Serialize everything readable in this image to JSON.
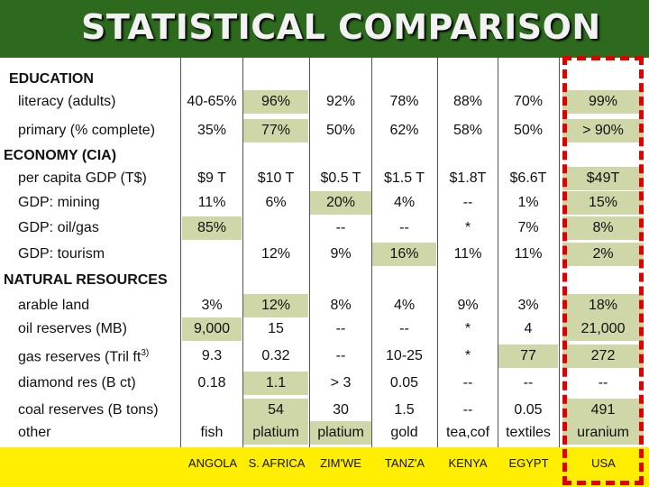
{
  "title": "STATISTICAL COMPARISON",
  "sections": {
    "education": "EDUCATION",
    "economy": "ECONOMY (CIA)",
    "resources": "NATURAL RESOURCES"
  },
  "rows": {
    "literacy": {
      "label": "literacy (adults)",
      "vals": [
        "40-65%",
        "96%",
        "92%",
        "78%",
        "88%",
        "70%",
        "99%"
      ]
    },
    "primary": {
      "label": "primary (% complete)",
      "vals": [
        "35%",
        "77%",
        "50%",
        "62%",
        "58%",
        "50%",
        "> 90%"
      ]
    },
    "gdp_pc": {
      "label": "per capita GDP (T$)",
      "vals": [
        "$9 T",
        "$10 T",
        "$0.5 T",
        "$1.5 T",
        "$1.8T",
        "$6.6T",
        "$49T"
      ]
    },
    "mining": {
      "label": "GDP: mining",
      "vals": [
        "11%",
        "6%",
        "20%",
        "4%",
        "--",
        "1%",
        "15%"
      ]
    },
    "oilgas": {
      "label": "GDP: oil/gas",
      "vals": [
        "85%",
        "",
        "--",
        "--",
        "*",
        "7%",
        "8%"
      ]
    },
    "tourism": {
      "label": "GDP: tourism",
      "vals": [
        "",
        "12%",
        "9%",
        "16%",
        "11%",
        "11%",
        "2%"
      ]
    },
    "arable": {
      "label": "arable land",
      "vals": [
        "3%",
        "12%",
        "8%",
        "4%",
        "9%",
        "3%",
        "18%"
      ]
    },
    "oilres": {
      "label": "oil reserves (MB)",
      "vals": [
        "9,000",
        "15",
        "--",
        "--",
        "*",
        "4",
        "21,000"
      ]
    },
    "gasres": {
      "label": "gas reserves (Tril ft",
      "label_sup": "3)",
      "vals": [
        "9.3",
        "0.32",
        "--",
        "10-25",
        "*",
        "77",
        "272"
      ]
    },
    "diamond": {
      "label": "diamond res (B ct)",
      "vals": [
        "0.18",
        "1.1",
        "> 3",
        "0.05",
        "--",
        "--",
        "--"
      ]
    },
    "coal": {
      "label": "coal reserves (B tons)",
      "vals": [
        "",
        "54",
        "30",
        "1.5",
        "--",
        "0.05",
        "491"
      ]
    },
    "other": {
      "label": "other",
      "vals": [
        "fish",
        "platium",
        "platium",
        "gold",
        "tea,cof",
        "textiles",
        "uranium"
      ]
    }
  },
  "countries": [
    "ANGOLA",
    "S. AFRICA",
    "ZIM'WE",
    "TANZ'A",
    "KENYA",
    "EGYPT",
    "USA"
  ],
  "colors": {
    "green": "#2d6a1e",
    "yellow": "#ffee00",
    "highlight": "#cfd7a8",
    "red_dash": "#e00000"
  }
}
